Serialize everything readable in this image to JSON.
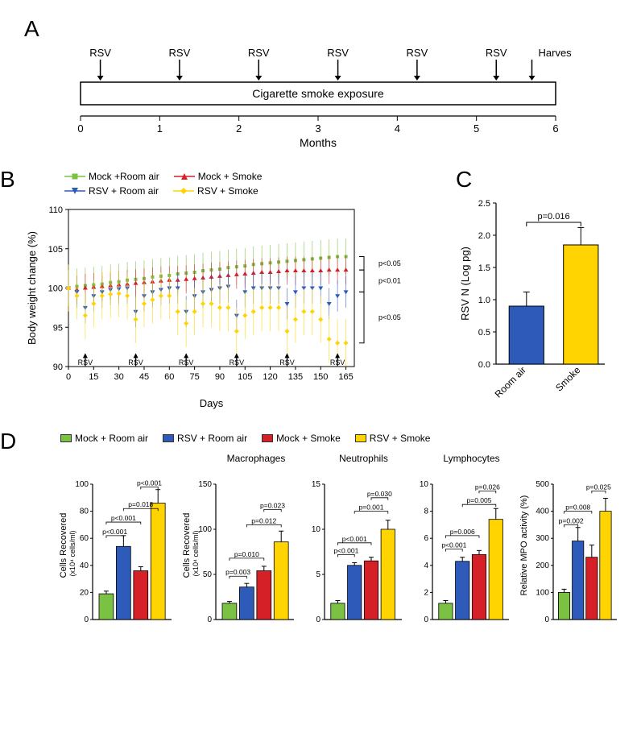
{
  "colors": {
    "green": "#7bc143",
    "blue": "#2e5bba",
    "red": "#d62027",
    "yellow": "#ffd400",
    "black": "#000000"
  },
  "panelA": {
    "label": "A",
    "rsv_label": "RSV",
    "harvest_label": "Harvest",
    "bar_label": "Cigarette smoke exposure",
    "x_label": "Months",
    "x_ticks": [
      0,
      1,
      2,
      3,
      4,
      5,
      6
    ],
    "rsv_positions": [
      0.25,
      1.25,
      2.25,
      3.25,
      4.25,
      5.25
    ],
    "harvest_position": 5.7
  },
  "panelB": {
    "label": "B",
    "legend": [
      {
        "label": "Mock +Room air",
        "color": "#7bc143",
        "marker": "square"
      },
      {
        "label": "RSV + Room air",
        "color": "#2e5bba",
        "marker": "triangle-down"
      },
      {
        "label": "Mock + Smoke",
        "color": "#d62027",
        "marker": "triangle-up"
      },
      {
        "label": "RSV + Smoke",
        "color": "#ffd400",
        "marker": "diamond"
      }
    ],
    "y_label": "Body weight change (%)",
    "x_label": "Days",
    "y_ticks": [
      90,
      95,
      100,
      105,
      110
    ],
    "ylim": [
      90,
      110
    ],
    "x_ticks": [
      0,
      15,
      30,
      45,
      60,
      75,
      90,
      105,
      120,
      135,
      150,
      165
    ],
    "xlim": [
      0,
      170
    ],
    "rsv_arrows": [
      10,
      40,
      70,
      100,
      130,
      160
    ],
    "rsv_arrow_label": "RSV",
    "annotations": [
      "p<0.05",
      "p<0.01",
      "p<0.05"
    ],
    "series": {
      "mock_room": {
        "color": "#7bc143",
        "x": [
          0,
          5,
          10,
          15,
          20,
          25,
          30,
          35,
          40,
          45,
          50,
          55,
          60,
          65,
          70,
          75,
          80,
          85,
          90,
          95,
          100,
          105,
          110,
          115,
          120,
          125,
          130,
          135,
          140,
          145,
          150,
          155,
          160,
          165
        ],
        "y": [
          100,
          100.2,
          100.3,
          100.4,
          100.5,
          100.7,
          100.8,
          101,
          101.1,
          101.2,
          101.4,
          101.5,
          101.6,
          101.8,
          101.9,
          102,
          102.2,
          102.3,
          102.4,
          102.6,
          102.7,
          102.8,
          103,
          103.1,
          103.2,
          103.3,
          103.4,
          103.5,
          103.6,
          103.7,
          103.8,
          103.9,
          104,
          104
        ],
        "err": 2.3
      },
      "mock_smoke": {
        "color": "#d62027",
        "x": [
          0,
          5,
          10,
          15,
          20,
          25,
          30,
          35,
          40,
          45,
          50,
          55,
          60,
          65,
          70,
          75,
          80,
          85,
          90,
          95,
          100,
          105,
          110,
          115,
          120,
          125,
          130,
          135,
          140,
          145,
          150,
          155,
          160,
          165
        ],
        "y": [
          100,
          99.8,
          100,
          100.1,
          100.2,
          100.3,
          100.4,
          100.5,
          100.6,
          100.7,
          100.8,
          100.9,
          101,
          101,
          101.1,
          101.2,
          101.3,
          101.4,
          101.5,
          101.6,
          101.7,
          101.8,
          101.9,
          102,
          102,
          102.1,
          102.2,
          102.2,
          102.2,
          102.2,
          102.2,
          102.3,
          102.3,
          102.3
        ],
        "err": 1.8
      },
      "rsv_room": {
        "color": "#2e5bba",
        "x": [
          0,
          5,
          10,
          15,
          20,
          25,
          30,
          35,
          40,
          45,
          50,
          55,
          60,
          65,
          70,
          75,
          80,
          85,
          90,
          95,
          100,
          105,
          110,
          115,
          120,
          125,
          130,
          135,
          140,
          145,
          150,
          155,
          160,
          165
        ],
        "y": [
          100,
          99.5,
          97.5,
          99,
          99.5,
          99.8,
          99.9,
          100,
          97,
          99,
          99.5,
          99.8,
          100,
          100,
          97,
          99,
          99.5,
          99.8,
          100,
          100.2,
          96.5,
          99.5,
          100,
          100,
          100,
          100,
          98,
          99.5,
          100,
          100,
          100,
          98,
          99,
          99.5
        ],
        "err": 2.0
      },
      "rsv_smoke": {
        "color": "#ffd400",
        "x": [
          0,
          5,
          10,
          15,
          20,
          25,
          30,
          35,
          40,
          45,
          50,
          55,
          60,
          65,
          70,
          75,
          80,
          85,
          90,
          95,
          100,
          105,
          110,
          115,
          120,
          125,
          130,
          135,
          140,
          145,
          150,
          155,
          160,
          165
        ],
        "y": [
          100,
          99,
          96.5,
          98,
          99,
          99.2,
          99.3,
          99,
          96,
          98,
          98.5,
          99,
          99,
          97,
          95.5,
          97,
          98,
          98,
          97.5,
          97.5,
          94.5,
          96.5,
          97,
          97.5,
          97.5,
          97.5,
          94.5,
          96,
          97,
          97,
          96,
          93.5,
          93,
          93
        ],
        "err": 3.0
      }
    }
  },
  "panelC": {
    "label": "C",
    "y_label": "RSV N (Log pg)",
    "y_ticks": [
      0.0,
      0.5,
      1.0,
      1.5,
      2.0,
      2.5
    ],
    "ylim": [
      0,
      2.5
    ],
    "bars": [
      {
        "label": "Room air",
        "value": 0.9,
        "err": 0.22,
        "color": "#2e5bba"
      },
      {
        "label": "Smoke",
        "value": 1.85,
        "err": 0.27,
        "color": "#ffd400"
      }
    ],
    "pval": "p=0.016"
  },
  "panelD": {
    "label": "D",
    "legend": [
      {
        "label": "Mock + Room air",
        "color": "#7bc143"
      },
      {
        "label": "RSV + Room air",
        "color": "#2e5bba"
      },
      {
        "label": "Mock + Smoke",
        "color": "#d62027"
      },
      {
        "label": "RSV + Smoke",
        "color": "#ffd400"
      }
    ],
    "charts": [
      {
        "title": "",
        "y_label": "Cells Recovered",
        "y_sublabel": "(x10⁴ cells/ml)",
        "y_ticks": [
          0,
          20,
          40,
          60,
          80,
          100
        ],
        "ylim": [
          0,
          100
        ],
        "bars": [
          {
            "value": 19,
            "err": 2,
            "color": "#7bc143"
          },
          {
            "value": 54,
            "err": 8,
            "color": "#2e5bba"
          },
          {
            "value": 36,
            "err": 3,
            "color": "#d62027"
          },
          {
            "value": 86,
            "err": 10,
            "color": "#ffd400"
          }
        ],
        "pvals": [
          {
            "from": 0,
            "to": 1,
            "label": "p<0.001",
            "y": 62
          },
          {
            "from": 0,
            "to": 2,
            "label": "p<0.001",
            "y": 72
          },
          {
            "from": 1,
            "to": 3,
            "label": "p=0.018",
            "y": 82
          },
          {
            "from": 2,
            "to": 3,
            "label": "p<0.001",
            "y": 98
          }
        ]
      },
      {
        "title": "Macrophages",
        "y_label": "Cells Recovered",
        "y_sublabel": "(x10⁴ cells/ml)",
        "y_ticks": [
          0,
          50,
          100,
          150
        ],
        "ylim": [
          0,
          150
        ],
        "bars": [
          {
            "value": 18,
            "err": 2,
            "color": "#7bc143"
          },
          {
            "value": 36,
            "err": 4,
            "color": "#2e5bba"
          },
          {
            "value": 54,
            "err": 5,
            "color": "#d62027"
          },
          {
            "value": 86,
            "err": 12,
            "color": "#ffd400"
          }
        ],
        "pvals": [
          {
            "from": 0,
            "to": 1,
            "label": "p=0.003",
            "y": 48
          },
          {
            "from": 0,
            "to": 2,
            "label": "p=0.010",
            "y": 68
          },
          {
            "from": 1,
            "to": 3,
            "label": "p=0.012",
            "y": 105
          },
          {
            "from": 2,
            "to": 3,
            "label": "p=0.023",
            "y": 122
          }
        ]
      },
      {
        "title": "Neutrophils",
        "y_label": "",
        "y_sublabel": "",
        "y_ticks": [
          0,
          5,
          10,
          15
        ],
        "ylim": [
          0,
          15
        ],
        "bars": [
          {
            "value": 1.8,
            "err": 0.3,
            "color": "#7bc143"
          },
          {
            "value": 6.0,
            "err": 0.3,
            "color": "#2e5bba"
          },
          {
            "value": 6.5,
            "err": 0.4,
            "color": "#d62027"
          },
          {
            "value": 10.0,
            "err": 1.0,
            "color": "#ffd400"
          }
        ],
        "pvals": [
          {
            "from": 0,
            "to": 1,
            "label": "p<0.001",
            "y": 7.2
          },
          {
            "from": 0,
            "to": 2,
            "label": "p<0.001",
            "y": 8.5
          },
          {
            "from": 1,
            "to": 3,
            "label": "p=0.001",
            "y": 12
          },
          {
            "from": 2,
            "to": 3,
            "label": "p=0.030",
            "y": 13.5
          }
        ]
      },
      {
        "title": "Lymphocytes",
        "y_label": "",
        "y_sublabel": "",
        "y_ticks": [
          0,
          2,
          4,
          6,
          8,
          10
        ],
        "ylim": [
          0,
          10
        ],
        "bars": [
          {
            "value": 1.2,
            "err": 0.2,
            "color": "#7bc143"
          },
          {
            "value": 4.3,
            "err": 0.3,
            "color": "#2e5bba"
          },
          {
            "value": 4.8,
            "err": 0.3,
            "color": "#d62027"
          },
          {
            "value": 7.4,
            "err": 0.8,
            "color": "#ffd400"
          }
        ],
        "pvals": [
          {
            "from": 0,
            "to": 1,
            "label": "p<0.001",
            "y": 5.2
          },
          {
            "from": 0,
            "to": 2,
            "label": "p=0.006",
            "y": 6.2
          },
          {
            "from": 1,
            "to": 3,
            "label": "p=0.005",
            "y": 8.5
          },
          {
            "from": 2,
            "to": 3,
            "label": "p=0.026",
            "y": 9.5
          }
        ]
      },
      {
        "title": "",
        "y_label": "Relative MPO activity (%)",
        "y_sublabel": "",
        "y_ticks": [
          0,
          100,
          200,
          300,
          400,
          500
        ],
        "ylim": [
          0,
          500
        ],
        "bars": [
          {
            "value": 100,
            "err": 12,
            "color": "#7bc143"
          },
          {
            "value": 290,
            "err": 50,
            "color": "#2e5bba"
          },
          {
            "value": 230,
            "err": 45,
            "color": "#d62027"
          },
          {
            "value": 400,
            "err": 48,
            "color": "#ffd400"
          }
        ],
        "pvals": [
          {
            "from": 0,
            "to": 1,
            "label": "p=0.002",
            "y": 350
          },
          {
            "from": 0,
            "to": 2,
            "label": "p=0.008",
            "y": 400
          },
          {
            "from": 2,
            "to": 3,
            "label": "p=0.025",
            "y": 475
          }
        ]
      }
    ]
  }
}
